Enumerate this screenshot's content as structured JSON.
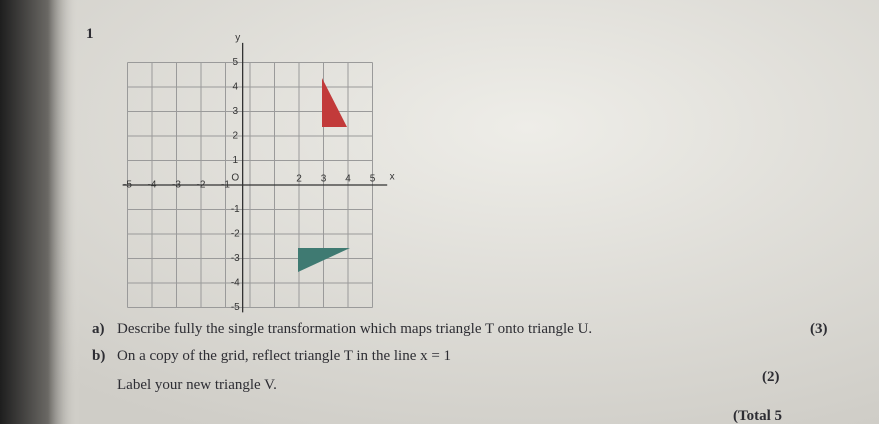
{
  "question_number": "1",
  "grid": {
    "y_axis_label": "y",
    "x_axis_label": "x",
    "origin_label": "O",
    "x_labels": [
      "-5",
      "-4",
      "-3",
      "-2",
      "-1",
      "2",
      "3",
      "4",
      "5"
    ],
    "y_labels": [
      "5",
      "4",
      "3",
      "2",
      "1",
      "-1",
      "-2",
      "-3",
      "-4",
      "-5"
    ]
  },
  "parts": [
    {
      "label": "a)",
      "text": "Describe fully the single transformation which maps triangle T onto triangle U.",
      "marks": "(3)"
    },
    {
      "label": "b)",
      "text": "On a copy of the grid, reflect triangle T in the line x = 1",
      "text2": "Label your new triangle V.",
      "marks": "(2)"
    }
  ],
  "total": "(Total 5"
}
